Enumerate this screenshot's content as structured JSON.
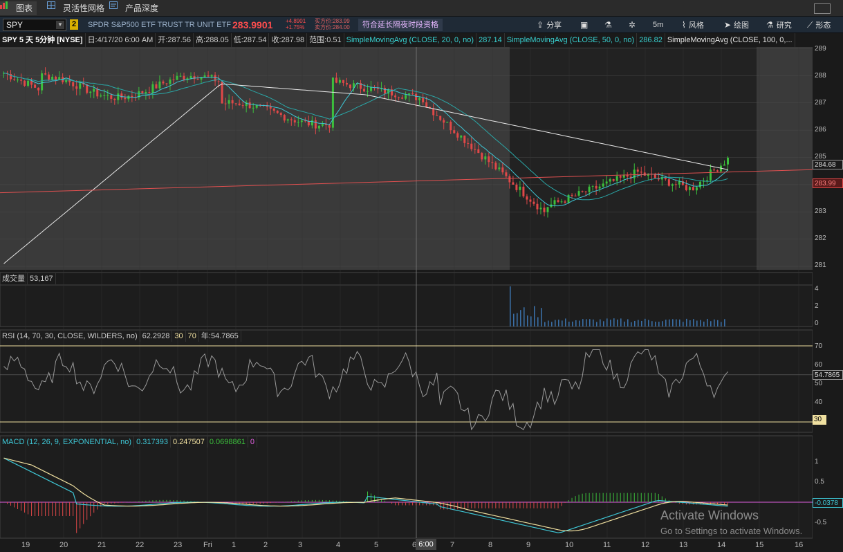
{
  "tabs": [
    {
      "label": "图表",
      "icon": "chart-icon"
    },
    {
      "label": "灵活性网格",
      "icon": "grid-icon"
    },
    {
      "label": "产品深度",
      "icon": "depth-icon"
    }
  ],
  "toolbar": {
    "symbol": "SPY",
    "badge": "2",
    "description": "SPDR S&P500 ETF TRUST TR UNIT ETF",
    "last_price": "283.9901",
    "change": "+4.8901",
    "change_pct": "+1.75%",
    "bid_label": "买方价:283.99",
    "ask_label": "卖方价:284.00",
    "extended_hours": "符合延长隔夜时段资格",
    "share": "分享",
    "timeframe": "5m",
    "style": "风格",
    "drawing": "绘图",
    "studies": "研究",
    "patterns": "形态"
  },
  "legend": {
    "title": "SPY 5 天 5分钟 [NYSE]",
    "date": "日:4/17/20 6:00 AM",
    "open": "开:287.56",
    "high": "高:288.05",
    "low": "低:287.54",
    "close": "收:287.98",
    "range": "范围:0.51",
    "sma20": "SimpleMovingAvg (CLOSE, 20, 0, no)",
    "sma20_val": "287.14",
    "sma50": "SimpleMovingAvg (CLOSE, 50, 0, no)",
    "sma50_val": "286.82",
    "sma100": "SimpleMovingAvg (CLOSE, 100, 0,..."
  },
  "price_axis": {
    "ticks": [
      "289",
      "288",
      "287",
      "286",
      "285",
      "284",
      "283",
      "282",
      "281"
    ],
    "tag_upper": "284.68",
    "tag_last": "283.99"
  },
  "volume_pane": {
    "label": "成交量",
    "value": "53,167",
    "ticks": [
      "4",
      "2",
      "0"
    ]
  },
  "rsi_pane": {
    "label": "RSI (14, 70, 30, CLOSE, WILDERS, no)",
    "value": "62.2928",
    "ob": "30",
    "os": "70",
    "avg": "年:54.7865",
    "ticks": [
      "70",
      "60",
      "50",
      "40"
    ],
    "tag_val": "54.7865",
    "tag_30": "30"
  },
  "macd_pane": {
    "label": "MACD (12, 26, 9, EXPONENTIAL, no)",
    "v1": "0.317393",
    "v2": "0.247507",
    "v3": "0.0698861",
    "v4": "0",
    "ticks": [
      "1",
      "0.5",
      "-0.5"
    ],
    "tag_val": "-0.0378"
  },
  "x_axis": {
    "labels": [
      "19",
      "20",
      "21",
      "22",
      "23",
      "Fri",
      "1",
      "2",
      "3",
      "4",
      "5",
      "6",
      "7",
      "8",
      "9",
      "10",
      "11",
      "12",
      "13",
      "14",
      "15",
      "16"
    ],
    "cursor": "6:00"
  },
  "watermark": {
    "line1": "Activate Windows",
    "line2": "Go to Settings to activate Windows."
  },
  "colors": {
    "up": "#3cbf3c",
    "down": "#e04848",
    "sma20": "#3ec7d6",
    "sma50": "#2aa7a7",
    "sma100": "#e8e8e8",
    "trend": "#e05050",
    "rsi": "#9a9a9a",
    "macd": "#3ec7d6",
    "signal": "#f0e0a0",
    "accent": "#d9b000"
  }
}
